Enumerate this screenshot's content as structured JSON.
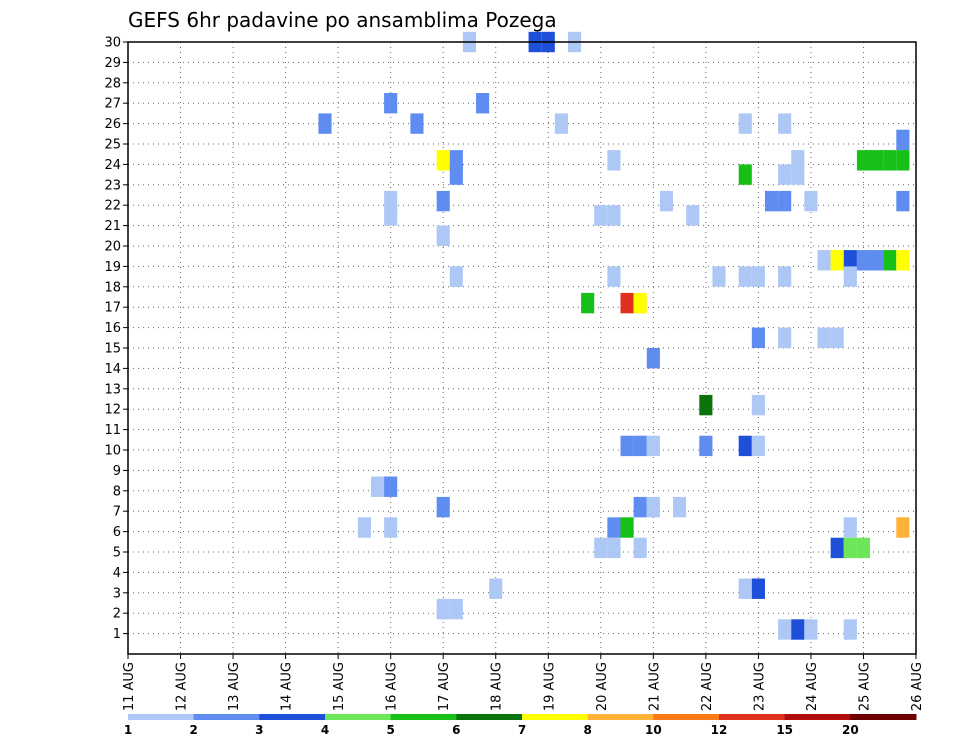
{
  "chart_data": {
    "type": "heatmap",
    "title": "GEFS 6hr padavine po ansamblima Pozega",
    "xlabel": "",
    "ylabel": "",
    "x_tick_labels": [
      "11 AUG",
      "12 AUG",
      "13 AUG",
      "14 AUG",
      "15 AUG",
      "16 AUG",
      "17 AUG",
      "18 AUG",
      "19 AUG",
      "20 AUG",
      "21 AUG",
      "22 AUG",
      "23 AUG",
      "24 AUG",
      "25 AUG",
      "26 AUG"
    ],
    "y_tick_labels": [
      "1",
      "2",
      "3",
      "4",
      "5",
      "6",
      "7",
      "8",
      "9",
      "10",
      "11",
      "12",
      "13",
      "14",
      "15",
      "16",
      "17",
      "18",
      "19",
      "20",
      "21",
      "22",
      "23",
      "24",
      "25",
      "26",
      "27",
      "28",
      "29",
      "30"
    ],
    "xlim": [
      0,
      15
    ],
    "ylim": [
      0,
      30
    ],
    "time_step": "6hr",
    "grid": true,
    "colorbar": {
      "labels": [
        "1",
        "2",
        "3",
        "4",
        "5",
        "6",
        "7",
        "8",
        "10",
        "12",
        "15",
        "20"
      ],
      "colors": [
        "#aec8f5",
        "#5f8cf0",
        "#1e4fd8",
        "#6ee65a",
        "#16c016",
        "#0b730b",
        "#ffff00",
        "#ffb238",
        "#ff7a14",
        "#e0301e",
        "#b00c0c",
        "#6e0000"
      ]
    },
    "cells": [
      [
        7.75,
        30,
        3
      ],
      [
        8.0,
        30,
        3
      ],
      [
        6.5,
        30,
        1
      ],
      [
        8.5,
        30,
        1
      ],
      [
        5.0,
        27,
        2
      ],
      [
        6.75,
        27,
        2
      ],
      [
        5.5,
        26,
        2
      ],
      [
        8.25,
        26,
        1
      ],
      [
        11.75,
        26,
        1
      ],
      [
        12.5,
        26,
        1
      ],
      [
        3.75,
        26,
        2
      ],
      [
        14.75,
        25.2,
        2
      ],
      [
        6.0,
        24.2,
        7
      ],
      [
        6.25,
        24.2,
        2
      ],
      [
        9.25,
        24.2,
        1
      ],
      [
        14.5,
        24.2,
        5
      ],
      [
        14.25,
        24.2,
        5
      ],
      [
        14.0,
        24.2,
        5
      ],
      [
        14.75,
        24.2,
        5
      ],
      [
        12.75,
        24.2,
        1
      ],
      [
        6.25,
        23.5,
        2
      ],
      [
        11.75,
        23.5,
        5
      ],
      [
        12.5,
        23.5,
        1
      ],
      [
        12.75,
        23.5,
        1
      ],
      [
        5.0,
        22.2,
        1
      ],
      [
        6.0,
        22.2,
        2
      ],
      [
        10.25,
        22.2,
        1
      ],
      [
        12.25,
        22.2,
        2
      ],
      [
        12.5,
        22.2,
        2
      ],
      [
        13.0,
        22.2,
        1
      ],
      [
        14.75,
        22.2,
        2
      ],
      [
        5.0,
        21.5,
        1
      ],
      [
        9.0,
        21.5,
        1
      ],
      [
        9.25,
        21.5,
        1
      ],
      [
        10.75,
        21.5,
        1
      ],
      [
        6.0,
        20.5,
        1
      ],
      [
        13.25,
        19.3,
        1
      ],
      [
        13.5,
        19.3,
        7
      ],
      [
        13.75,
        19.3,
        3
      ],
      [
        14.0,
        19.3,
        2
      ],
      [
        14.25,
        19.3,
        2
      ],
      [
        14.5,
        19.3,
        5
      ],
      [
        14.75,
        19.3,
        7
      ],
      [
        6.25,
        18.5,
        1
      ],
      [
        9.25,
        18.5,
        1
      ],
      [
        11.25,
        18.5,
        1
      ],
      [
        11.75,
        18.5,
        1
      ],
      [
        12.0,
        18.5,
        1
      ],
      [
        12.5,
        18.5,
        1
      ],
      [
        13.75,
        18.5,
        1
      ],
      [
        8.75,
        17.2,
        5
      ],
      [
        9.5,
        17.2,
        10
      ],
      [
        9.75,
        17.2,
        7
      ],
      [
        12.0,
        15.5,
        2
      ],
      [
        12.5,
        15.5,
        1
      ],
      [
        13.25,
        15.5,
        1
      ],
      [
        13.5,
        15.5,
        1
      ],
      [
        10.0,
        14.5,
        2
      ],
      [
        11.0,
        12.2,
        6
      ],
      [
        12.0,
        12.2,
        1
      ],
      [
        9.5,
        10.2,
        2
      ],
      [
        9.75,
        10.2,
        2
      ],
      [
        10.0,
        10.2,
        1
      ],
      [
        11.0,
        10.2,
        2
      ],
      [
        11.75,
        10.2,
        3
      ],
      [
        12.0,
        10.2,
        1
      ],
      [
        4.75,
        8.2,
        1
      ],
      [
        5.0,
        8.2,
        2
      ],
      [
        6.0,
        7.2,
        2
      ],
      [
        9.75,
        7.2,
        2
      ],
      [
        10.0,
        7.2,
        1
      ],
      [
        10.5,
        7.2,
        1
      ],
      [
        4.5,
        6.2,
        1
      ],
      [
        5.0,
        6.2,
        1
      ],
      [
        9.25,
        6.2,
        2
      ],
      [
        9.5,
        6.2,
        5
      ],
      [
        14.75,
        6.2,
        8
      ],
      [
        13.75,
        6.2,
        1
      ],
      [
        9.0,
        5.2,
        1
      ],
      [
        9.25,
        5.2,
        1
      ],
      [
        9.75,
        5.2,
        1
      ],
      [
        13.5,
        5.2,
        3
      ],
      [
        13.75,
        5.2,
        4
      ],
      [
        14.0,
        5.2,
        4
      ],
      [
        7.0,
        3.2,
        1
      ],
      [
        11.75,
        3.2,
        1
      ],
      [
        12.0,
        3.2,
        3
      ],
      [
        6.0,
        2.2,
        1
      ],
      [
        6.25,
        2.2,
        1
      ],
      [
        12.5,
        1.2,
        1
      ],
      [
        12.75,
        1.2,
        3
      ],
      [
        13.0,
        1.2,
        1
      ],
      [
        13.75,
        1.2,
        1
      ]
    ]
  }
}
